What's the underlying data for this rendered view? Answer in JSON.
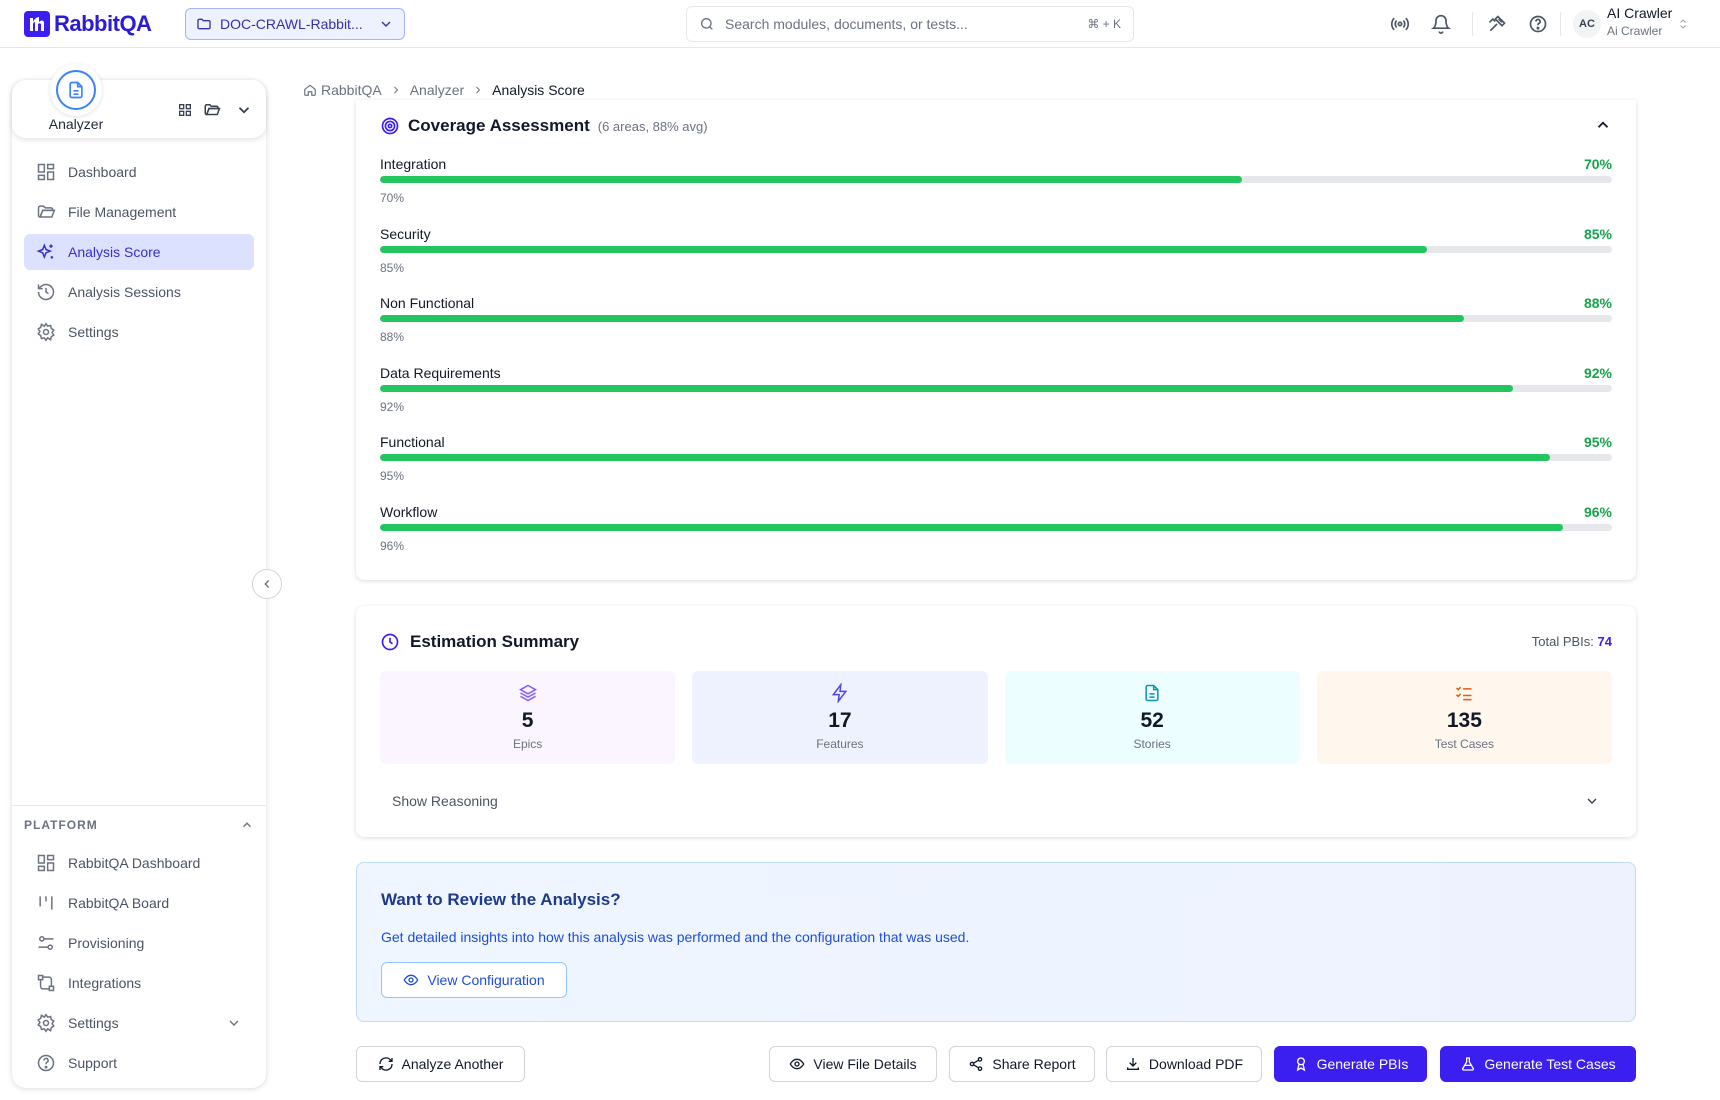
{
  "header": {
    "brand": "RabbitQA",
    "project": "DOC-CRAWL-Rabbit...",
    "search_placeholder": "Search modules, documents, or tests...",
    "search_shortcut": "⌘ + K",
    "user": {
      "initials": "AC",
      "name": "AI Crawler",
      "role": "Ai Crawler"
    },
    "icons": [
      "broadcast-icon",
      "bell-icon",
      "tools-icon",
      "help-icon"
    ]
  },
  "sidebar": {
    "app_name": "Analyzer",
    "nav": [
      {
        "label": "Dashboard",
        "icon": "dashboard-icon",
        "active": false
      },
      {
        "label": "File Management",
        "icon": "folder-icon",
        "active": false
      },
      {
        "label": "Analysis Score",
        "icon": "sparkles-icon",
        "active": true
      },
      {
        "label": "Analysis Sessions",
        "icon": "history-icon",
        "active": false
      },
      {
        "label": "Settings",
        "icon": "gear-icon",
        "active": false
      }
    ],
    "platform_heading": "PLATFORM",
    "platform": [
      {
        "label": "RabbitQA Dashboard",
        "icon": "dashboard-icon"
      },
      {
        "label": "RabbitQA Board",
        "icon": "board-icon"
      },
      {
        "label": "Provisioning",
        "icon": "sliders-icon"
      },
      {
        "label": "Integrations",
        "icon": "integrations-icon"
      },
      {
        "label": "Settings",
        "icon": "gear-icon"
      },
      {
        "label": "Support",
        "icon": "help-icon"
      }
    ]
  },
  "breadcrumb": [
    "RabbitQA",
    "Analyzer",
    "Analysis Score"
  ],
  "coverage": {
    "title": "Coverage Assessment",
    "subtitle": "(6 areas, 88% avg)",
    "areas": [
      {
        "label": "Integration",
        "value": 70,
        "pct": "70%"
      },
      {
        "label": "Security",
        "value": 85,
        "pct": "85%"
      },
      {
        "label": "Non Functional",
        "value": 88,
        "pct": "88%"
      },
      {
        "label": "Data Requirements",
        "value": 92,
        "pct": "92%"
      },
      {
        "label": "Functional",
        "value": 95,
        "pct": "95%"
      },
      {
        "label": "Workflow",
        "value": 96,
        "pct": "96%"
      }
    ],
    "accent": "#22c55e"
  },
  "estimation": {
    "title": "Estimation Summary",
    "total_label": "Total PBIs:",
    "total_value": "74",
    "tiles": [
      {
        "value": "5",
        "label": "Epics",
        "icon": "layers-icon"
      },
      {
        "value": "17",
        "label": "Features",
        "icon": "bolt-icon"
      },
      {
        "value": "52",
        "label": "Stories",
        "icon": "document-icon"
      },
      {
        "value": "135",
        "label": "Test Cases",
        "icon": "checklist-icon"
      }
    ],
    "reasoning_label": "Show Reasoning"
  },
  "review": {
    "title": "Want to Review the Analysis?",
    "description": "Get detailed insights into how this analysis was performed and the configuration that was used.",
    "button": "View Configuration"
  },
  "actions": {
    "analyze_another": "Analyze Another",
    "view_file_details": "View File Details",
    "share_report": "Share Report",
    "download_pdf": "Download PDF",
    "generate_pbis": "Generate PBIs",
    "generate_test_cases": "Generate Test Cases",
    "primary_color": "#3b1ef0"
  }
}
